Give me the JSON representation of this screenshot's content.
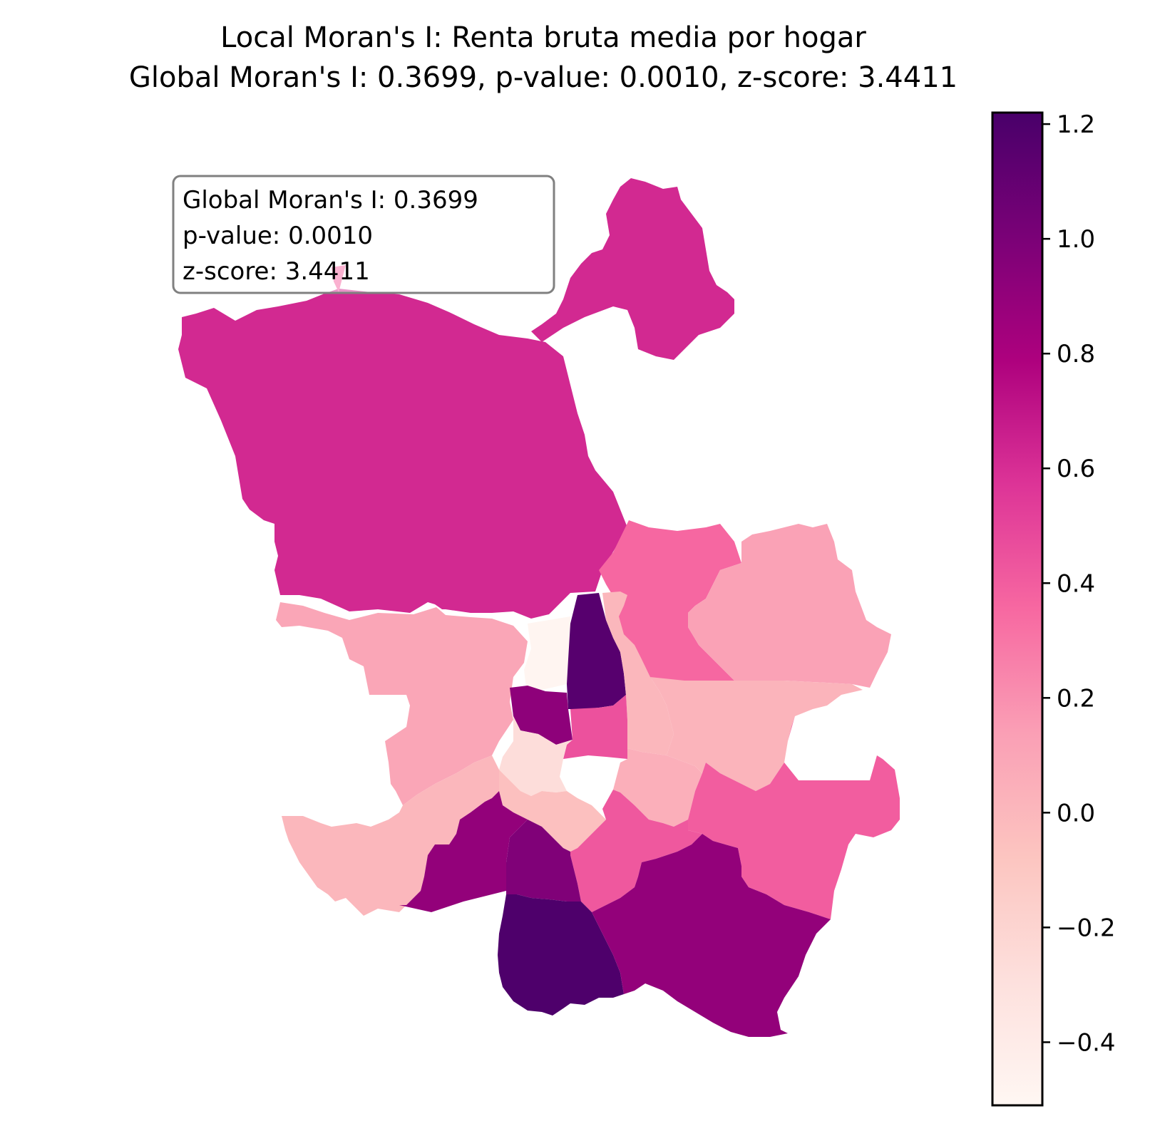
{
  "title": {
    "line1": "Local Moran's I: Renta bruta media por hogar",
    "line2": "Global Moran's I: 0.3699, p-value: 0.0010, z-score: 3.4411"
  },
  "annotation": {
    "line1": "Global Moran's I: 0.3699",
    "line2": "p-value: 0.0010",
    "line3": "z-score: 3.4411"
  },
  "colorbar": {
    "colormap": "RdPu",
    "vmin": -0.51,
    "vmax": 1.22,
    "stops": [
      "#fff7f3",
      "#fde0dd",
      "#fcc5c0",
      "#fa9fb5",
      "#f768a1",
      "#dd3497",
      "#ae017e",
      "#7a0177",
      "#49006a"
    ],
    "tick_values": [
      -0.4,
      -0.2,
      0.0,
      0.2,
      0.4,
      0.6,
      0.8,
      1.0,
      1.2
    ],
    "tick_labels": [
      "−0.4",
      "−0.2",
      "0.0",
      "0.2",
      "0.4",
      "0.6",
      "0.8",
      "1.0",
      "1.2"
    ]
  },
  "chart_data": {
    "type": "choropleth",
    "metric": "Local Moran's I",
    "variable": "Renta bruta media por hogar",
    "global_morans_i": 0.3699,
    "p_value": 0.001,
    "z_score": 3.4411,
    "districts": [
      {
        "id": "north",
        "local_i": 0.62
      },
      {
        "id": "northeast-lobe",
        "local_i": 0.62
      },
      {
        "id": "north-spike",
        "local_i": 0.38
      },
      {
        "id": "west",
        "local_i": 0.1
      },
      {
        "id": "northeast-mid",
        "local_i": 0.36
      },
      {
        "id": "east",
        "local_i": 0.12
      },
      {
        "id": "center-north-white",
        "local_i": -0.49
      },
      {
        "id": "center-dark-north",
        "local_i": 1.16
      },
      {
        "id": "center-dark-west",
        "local_i": 0.92
      },
      {
        "id": "center-strip",
        "local_i": 0.0
      },
      {
        "id": "center-mid",
        "local_i": 0.45
      },
      {
        "id": "east-center",
        "local_i": 0.02
      },
      {
        "id": "center",
        "local_i": -0.27
      },
      {
        "id": "center-south-a",
        "local_i": -0.05
      },
      {
        "id": "center-east",
        "local_i": 0.05
      },
      {
        "id": "southwest",
        "local_i": 0.0
      },
      {
        "id": "east-south",
        "local_i": 0.4
      },
      {
        "id": "south-center",
        "local_i": 0.42
      },
      {
        "id": "south-west-mid",
        "local_i": 0.9
      },
      {
        "id": "south-center-dark",
        "local_i": 0.98
      },
      {
        "id": "south",
        "local_i": 1.2
      },
      {
        "id": "southeast",
        "local_i": 0.9
      }
    ]
  }
}
